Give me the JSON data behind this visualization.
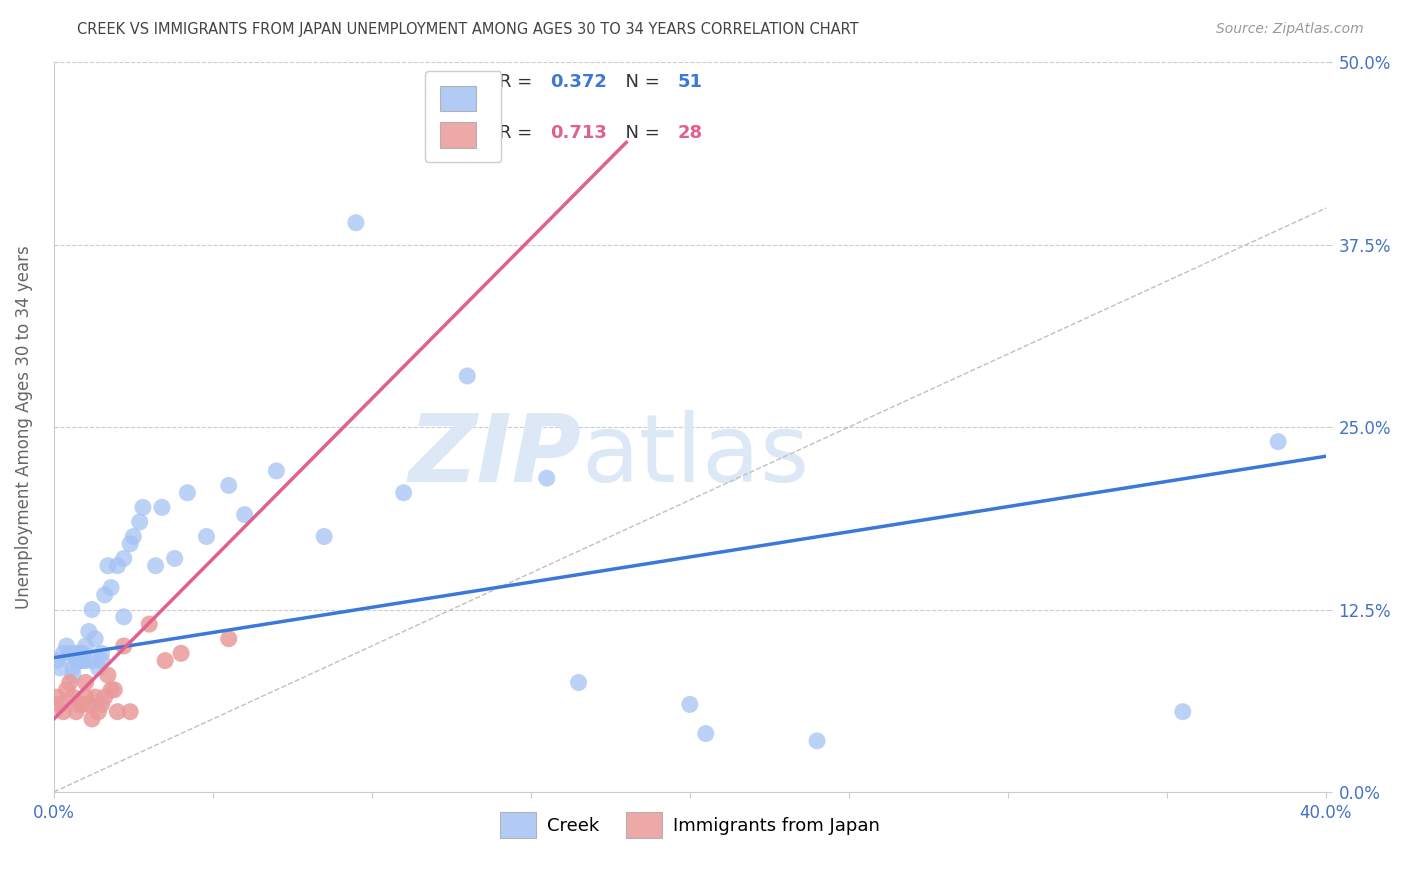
{
  "title": "CREEK VS IMMIGRANTS FROM JAPAN UNEMPLOYMENT AMONG AGES 30 TO 34 YEARS CORRELATION CHART",
  "source": "Source: ZipAtlas.com",
  "ylabel": "Unemployment Among Ages 30 to 34 years",
  "xlim": [
    0.0,
    0.4
  ],
  "ylim": [
    0.0,
    0.5
  ],
  "yticks": [
    0.0,
    0.125,
    0.25,
    0.375,
    0.5
  ],
  "ytick_labels": [
    "0.0%",
    "12.5%",
    "25.0%",
    "37.5%",
    "50.0%"
  ],
  "xtick_positions": [
    0.0,
    0.05,
    0.1,
    0.15,
    0.2,
    0.25,
    0.3,
    0.35,
    0.4
  ],
  "xtick_labels": [
    "0.0%",
    "",
    "",
    "",
    "",
    "",
    "",
    "",
    "40.0%"
  ],
  "creek_R": 0.372,
  "creek_N": 51,
  "japan_R": 0.713,
  "japan_N": 28,
  "creek_color": "#a4c2f4",
  "japan_color": "#ea9999",
  "creek_line_color": "#3c78d8",
  "japan_line_color": "#e06090",
  "refline_color": "#c0c0c0",
  "background_color": "#ffffff",
  "grid_color": "#cccccc",
  "title_color": "#444444",
  "axis_label_color": "#666666",
  "tick_color": "#4472c4",
  "source_color": "#999999",
  "creek_x": [
    0.001,
    0.002,
    0.003,
    0.004,
    0.005,
    0.006,
    0.006,
    0.007,
    0.007,
    0.008,
    0.008,
    0.009,
    0.009,
    0.01,
    0.01,
    0.011,
    0.012,
    0.012,
    0.013,
    0.014,
    0.015,
    0.015,
    0.016,
    0.017,
    0.018,
    0.02,
    0.022,
    0.022,
    0.024,
    0.025,
    0.027,
    0.028,
    0.032,
    0.034,
    0.038,
    0.042,
    0.048,
    0.055,
    0.06,
    0.07,
    0.085,
    0.095,
    0.11,
    0.13,
    0.155,
    0.165,
    0.2,
    0.205,
    0.24,
    0.355,
    0.385
  ],
  "creek_y": [
    0.09,
    0.085,
    0.095,
    0.1,
    0.095,
    0.08,
    0.085,
    0.09,
    0.095,
    0.09,
    0.095,
    0.09,
    0.095,
    0.09,
    0.1,
    0.11,
    0.09,
    0.125,
    0.105,
    0.085,
    0.095,
    0.09,
    0.135,
    0.155,
    0.14,
    0.155,
    0.12,
    0.16,
    0.17,
    0.175,
    0.185,
    0.195,
    0.155,
    0.195,
    0.16,
    0.205,
    0.175,
    0.21,
    0.19,
    0.22,
    0.175,
    0.39,
    0.205,
    0.285,
    0.215,
    0.075,
    0.06,
    0.04,
    0.035,
    0.055,
    0.24
  ],
  "japan_x": [
    0.001,
    0.002,
    0.003,
    0.004,
    0.005,
    0.006,
    0.007,
    0.008,
    0.009,
    0.01,
    0.01,
    0.011,
    0.012,
    0.013,
    0.014,
    0.015,
    0.016,
    0.017,
    0.018,
    0.019,
    0.02,
    0.022,
    0.024,
    0.03,
    0.035,
    0.04,
    0.055,
    0.12
  ],
  "japan_y": [
    0.065,
    0.06,
    0.055,
    0.07,
    0.075,
    0.065,
    0.055,
    0.06,
    0.06,
    0.065,
    0.075,
    0.06,
    0.05,
    0.065,
    0.055,
    0.06,
    0.065,
    0.08,
    0.07,
    0.07,
    0.055,
    0.1,
    0.055,
    0.115,
    0.09,
    0.095,
    0.105,
    0.47
  ],
  "creek_line_x0": 0.0,
  "creek_line_y0": 0.092,
  "creek_line_x1": 0.4,
  "creek_line_y1": 0.23,
  "japan_line_x0": 0.0,
  "japan_line_y0": 0.05,
  "japan_line_x1": 0.18,
  "japan_line_y1": 0.445
}
